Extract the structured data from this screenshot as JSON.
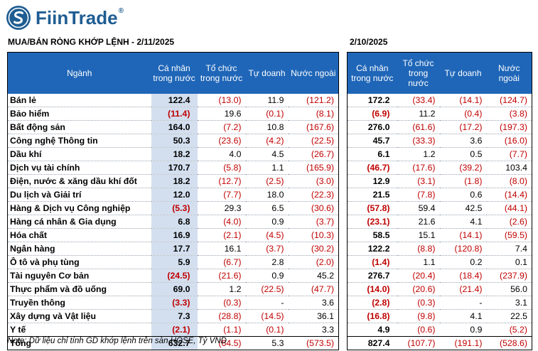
{
  "brand": {
    "name": "FiinTrade",
    "registered": "®"
  },
  "left_title": "MUA/BÁN RÒNG KHỚP LỆNH - 2/11/2025",
  "right_title": "2/10/2025",
  "left_headers": [
    "Ngành",
    "Cá nhân trong nước",
    "Tổ chức trong nước",
    "Tự doanh",
    "Nước ngoài"
  ],
  "right_headers": [
    "Cá nhân trong nước",
    "Tổ chức trong nước",
    "Tự doanh",
    "Nước ngoài"
  ],
  "rows": [
    {
      "sector": "Bán lẻ",
      "left": [
        "122.4",
        "(13.0)",
        "11.9",
        "(121.2)"
      ],
      "right": [
        "172.2",
        "(33.4)",
        "(14.1)",
        "(124.7)"
      ]
    },
    {
      "sector": "Bảo hiểm",
      "left": [
        "(11.4)",
        "19.6",
        "(0.1)",
        "(8.1)"
      ],
      "right": [
        "(6.9)",
        "11.2",
        "(0.4)",
        "(3.8)"
      ]
    },
    {
      "sector": "Bất động sản",
      "left": [
        "164.0",
        "(7.2)",
        "10.8",
        "(167.6)"
      ],
      "right": [
        "276.0",
        "(61.6)",
        "(17.2)",
        "(197.3)"
      ]
    },
    {
      "sector": "Công nghệ Thông tin",
      "left": [
        "50.3",
        "(23.6)",
        "(4.2)",
        "(22.5)"
      ],
      "right": [
        "45.7",
        "(33.3)",
        "3.6",
        "(16.0)"
      ]
    },
    {
      "sector": "Dầu khí",
      "left": [
        "18.2",
        "4.0",
        "4.5",
        "(26.7)"
      ],
      "right": [
        "6.1",
        "1.2",
        "0.5",
        "(7.7)"
      ]
    },
    {
      "sector": "Dịch vụ tài chính",
      "left": [
        "170.7",
        "(5.8)",
        "1.1",
        "(165.9)"
      ],
      "right": [
        "(46.7)",
        "(17.6)",
        "(39.2)",
        "103.4"
      ]
    },
    {
      "sector": "Điện, nước & xăng dầu khí đốt",
      "left": [
        "18.2",
        "(12.7)",
        "(2.5)",
        "(3.0)"
      ],
      "right": [
        "12.9",
        "(3.1)",
        "(1.8)",
        "(8.0)"
      ]
    },
    {
      "sector": "Du lịch và Giải trí",
      "left": [
        "12.0",
        "(7.7)",
        "18.0",
        "(22.3)"
      ],
      "right": [
        "21.5",
        "(7.8)",
        "0.6",
        "(14.4)"
      ]
    },
    {
      "sector": "Hàng & Dịch vụ Công nghiệp",
      "left": [
        "(5.3)",
        "29.3",
        "6.5",
        "(30.6)"
      ],
      "right": [
        "(57.8)",
        "59.4",
        "42.5",
        "(44.1)"
      ]
    },
    {
      "sector": "Hàng cá nhân & Gia dụng",
      "left": [
        "6.8",
        "(4.0)",
        "0.9",
        "(3.7)"
      ],
      "right": [
        "(23.1)",
        "21.6",
        "4.1",
        "(2.6)"
      ]
    },
    {
      "sector": "Hóa chất",
      "left": [
        "16.9",
        "(2.1)",
        "(4.5)",
        "(10.3)"
      ],
      "right": [
        "58.5",
        "15.1",
        "(14.1)",
        "(59.5)"
      ]
    },
    {
      "sector": "Ngân hàng",
      "left": [
        "17.7",
        "16.1",
        "(3.7)",
        "(30.2)"
      ],
      "right": [
        "122.2",
        "(8.8)",
        "(120.8)",
        "7.4"
      ]
    },
    {
      "sector": "Ô tô và phụ tùng",
      "left": [
        "5.9",
        "(6.7)",
        "2.8",
        "(2.0)"
      ],
      "right": [
        "(1.4)",
        "1.1",
        "0.2",
        "0.1"
      ]
    },
    {
      "sector": "Tài nguyên Cơ bản",
      "left": [
        "(24.5)",
        "(21.6)",
        "0.9",
        "45.2"
      ],
      "right": [
        "276.7",
        "(20.4)",
        "(18.4)",
        "(237.9)"
      ]
    },
    {
      "sector": "Thực phẩm và đồ uống",
      "left": [
        "69.0",
        "1.2",
        "(22.5)",
        "(47.7)"
      ],
      "right": [
        "(14.0)",
        "(20.6)",
        "(21.4)",
        "56.0"
      ]
    },
    {
      "sector": "Truyền thông",
      "left": [
        "(3.3)",
        "(0.3)",
        "-",
        "3.6"
      ],
      "right": [
        "(2.8)",
        "(0.3)",
        "-",
        "3.1"
      ]
    },
    {
      "sector": "Xây dựng và Vật liệu",
      "left": [
        "7.3",
        "(28.8)",
        "(14.5)",
        "36.1"
      ],
      "right": [
        "(16.8)",
        "(9.8)",
        "4.1",
        "22.5"
      ]
    },
    {
      "sector": "Y tế",
      "left": [
        "(2.1)",
        "(1.1)",
        "(0.1)",
        "3.3"
      ],
      "right": [
        "4.9",
        "(0.6)",
        "0.9",
        "(5.2)"
      ]
    }
  ],
  "total": {
    "label": "Tổng",
    "left": [
      "632.7",
      "(64.5)",
      "5.3",
      "(573.5)"
    ],
    "right": [
      "827.4",
      "(107.7)",
      "(191.1)",
      "(528.6)"
    ]
  },
  "note": "Note: Dữ liệu chỉ tính GD khớp lệnh trên sàn HOSE, Tỷ VND",
  "colors": {
    "header_bg": "#1f66b8",
    "highlight_col": "#d3dfef",
    "negative": "#c00000",
    "brand": "#1f5d92"
  }
}
